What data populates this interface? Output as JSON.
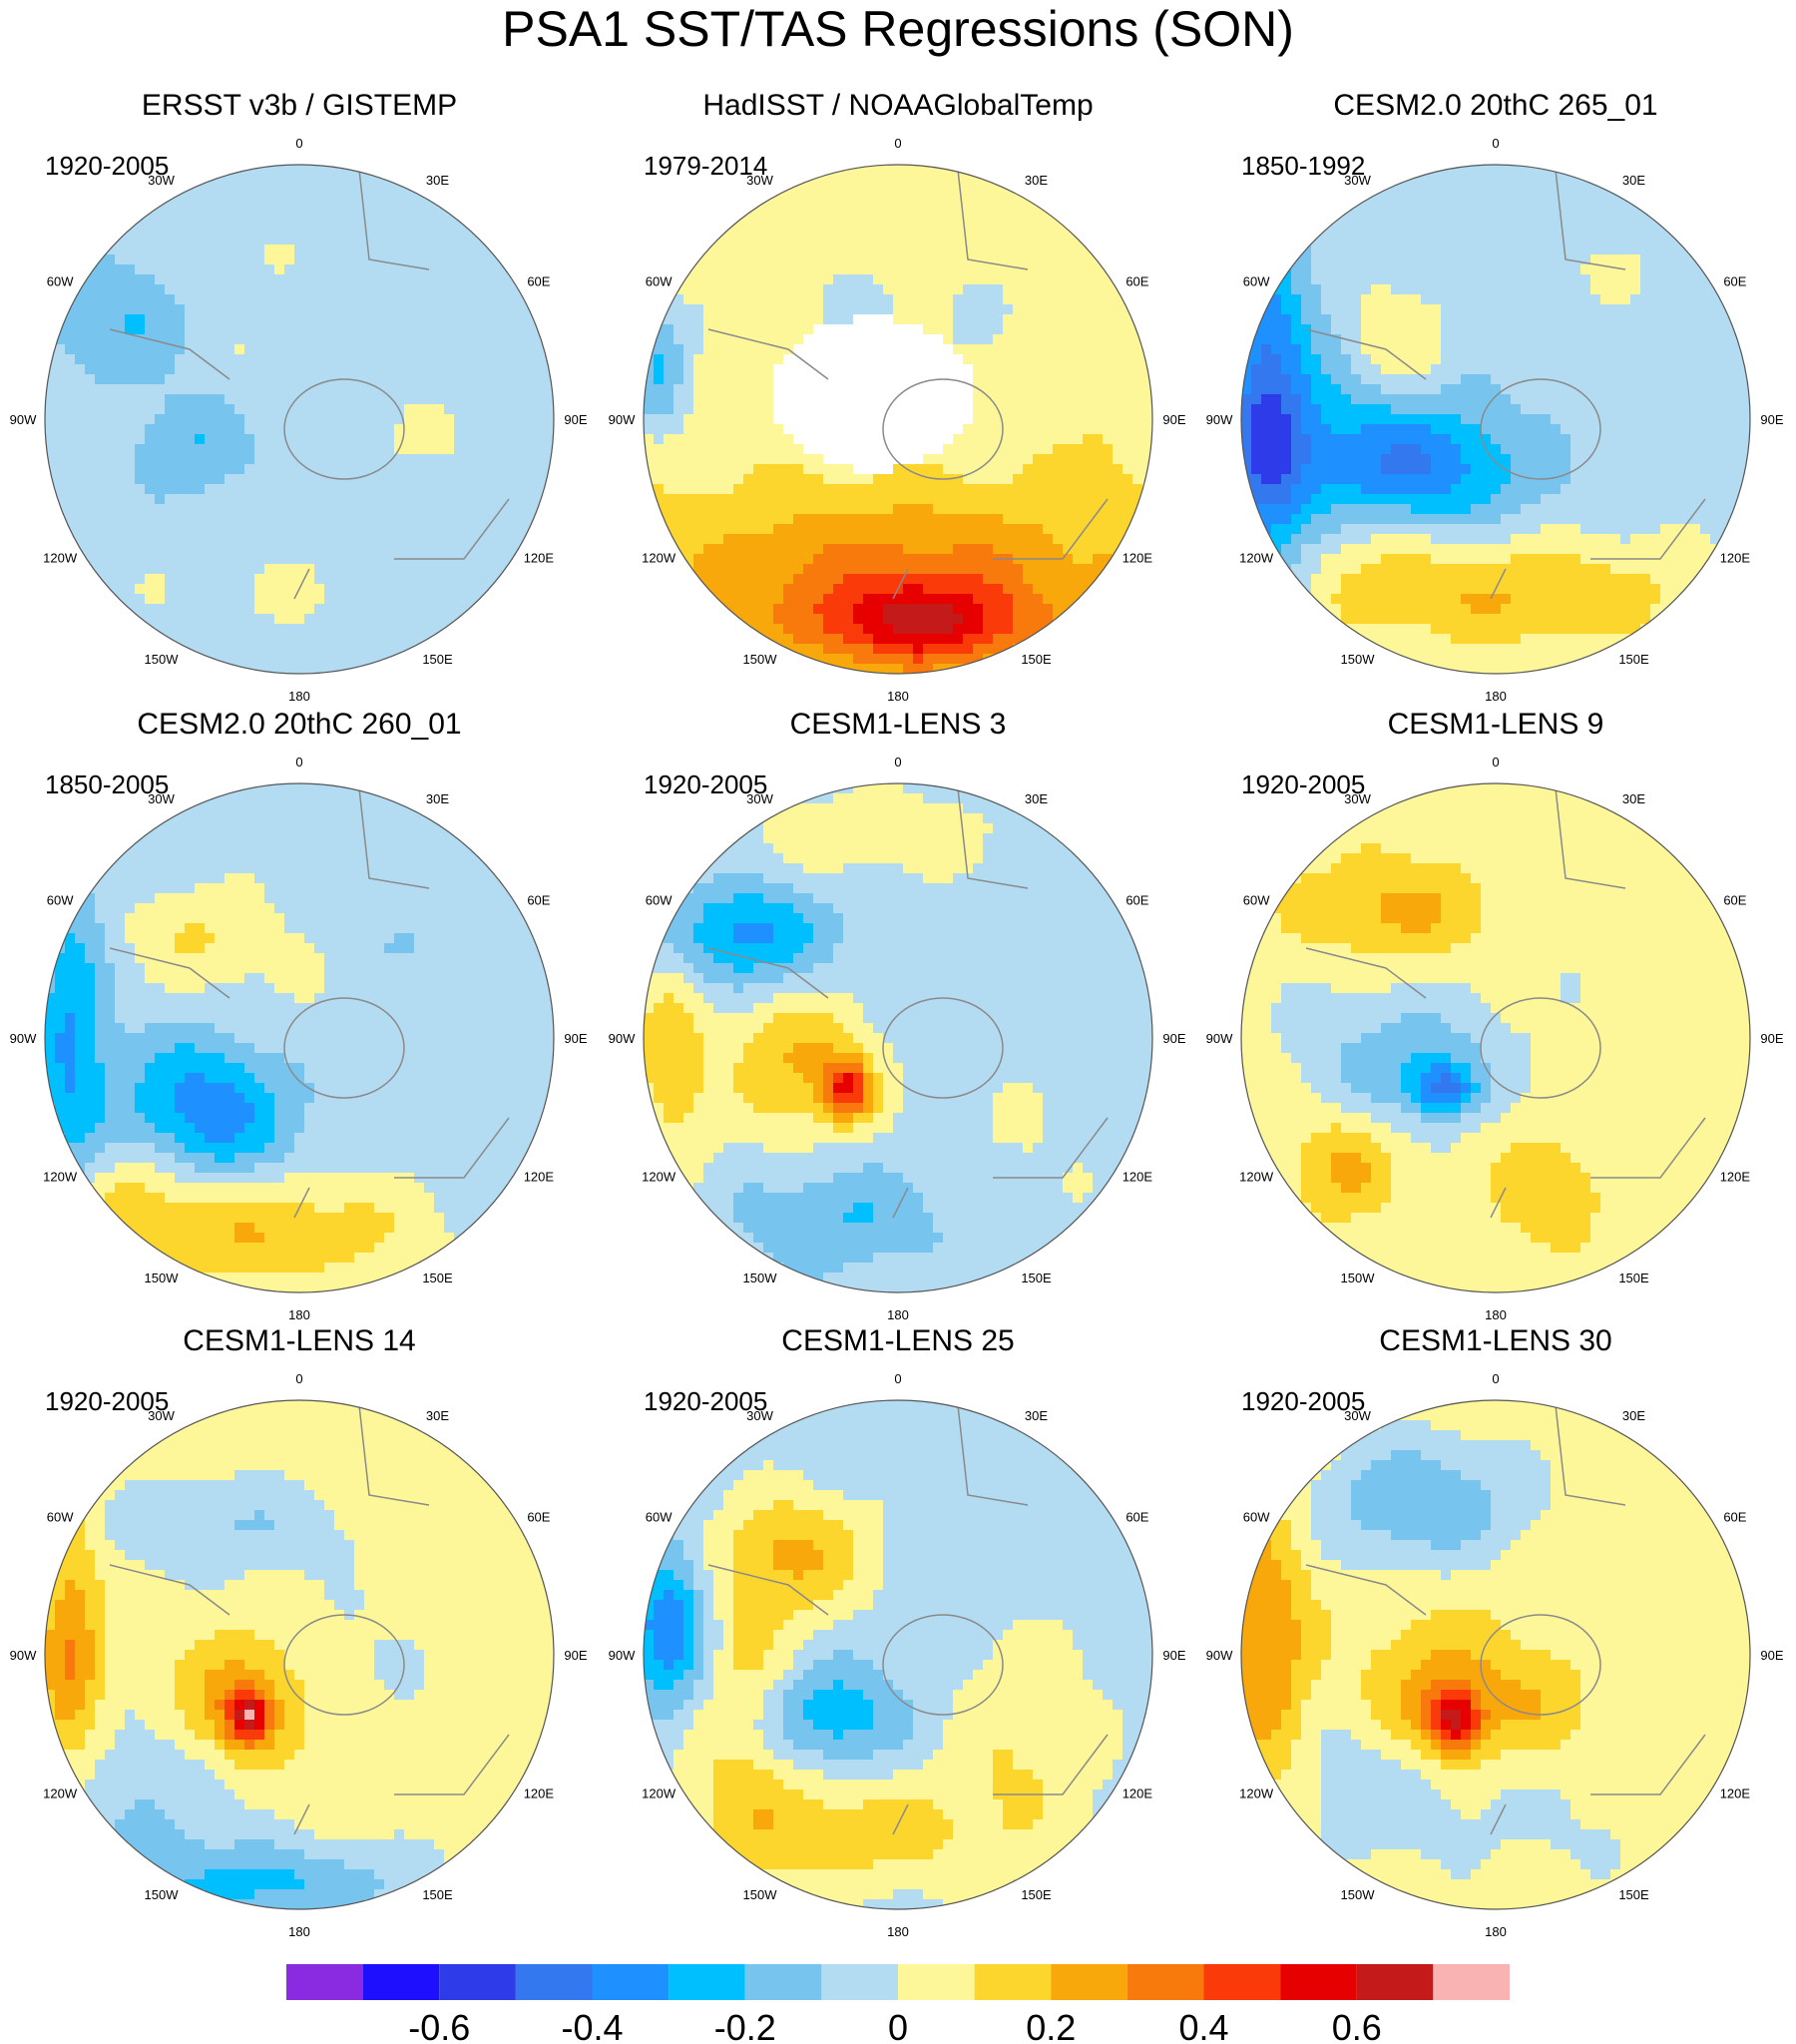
{
  "figure_title": "PSA1 SST/TAS Regressions (SON)",
  "colors": {
    "land_fill": "#ffffff",
    "coast": "#8a8a8a",
    "rim": "#555555"
  },
  "chart_data": {
    "type": "heatmap",
    "projection": "south-polar-stereographic",
    "title": "PSA1 SST/TAS Regressions (SON)",
    "longitude_labels": [
      "0",
      "30E",
      "60E",
      "90E",
      "120E",
      "150E",
      "180",
      "150W",
      "120W",
      "90W",
      "60W",
      "30W"
    ],
    "colorbar": {
      "levels": [
        -0.7,
        -0.6,
        -0.5,
        -0.4,
        -0.3,
        -0.2,
        -0.1,
        0,
        0.1,
        0.2,
        0.3,
        0.4,
        0.5,
        0.6,
        0.7
      ],
      "tick_labels": [
        "-0.6",
        "-0.4",
        "-0.2",
        "0",
        "0.2",
        "0.4",
        "0.6"
      ],
      "tick_values": [
        -0.6,
        -0.4,
        -0.2,
        0,
        0.2,
        0.4,
        0.6
      ],
      "colors": [
        "#8a2be2",
        "#1e10ff",
        "#2d3be8",
        "#3478f0",
        "#1e90ff",
        "#00bfff",
        "#77c4ef",
        "#b3dcf2",
        "#fdf79a",
        "#fcd62c",
        "#f9a80c",
        "#f87a0c",
        "#fb3a0a",
        "#e60000",
        "#c41a1a",
        "#f9b3b3"
      ]
    },
    "panels": [
      {
        "title": "ERSST v3b / GISTEMP",
        "years": "1920-2005",
        "bg": -0.05,
        "blobs": [
          [
            0.35,
            0.2,
            0.18,
            0.12,
            0.05
          ],
          [
            0.75,
            0.55,
            0.3,
            0.12,
            0.05
          ],
          [
            0.45,
            0.85,
            0.35,
            0.12,
            0.05
          ],
          [
            0.3,
            0.55,
            0.12,
            0.1,
            -0.15
          ],
          [
            0.15,
            0.3,
            0.15,
            0.12,
            -0.15
          ],
          [
            0.4,
            0.4,
            0.12,
            0.1,
            0.05
          ]
        ]
      },
      {
        "title": "HadISST / NOAAGlobalTemp",
        "years": "1979-2014",
        "bg": 0.05,
        "blobs": [
          [
            0.5,
            0.82,
            0.45,
            0.2,
            0.3
          ],
          [
            0.55,
            0.9,
            0.2,
            0.08,
            0.35
          ],
          [
            0.5,
            0.28,
            0.3,
            0.15,
            -0.05
          ],
          [
            0.5,
            0.55,
            0.3,
            0.2,
            -0.05
          ],
          [
            0.03,
            0.4,
            0.06,
            0.12,
            -0.25
          ],
          [
            0.9,
            0.6,
            0.12,
            0.15,
            0.05
          ]
        ],
        "missing": [
          0.45,
          0.45,
          0.2,
          0.15
        ]
      },
      {
        "title": "CESM2.0 20thC 265_01",
        "years": "1850-1992",
        "bg": -0.05,
        "blobs": [
          [
            0.35,
            0.6,
            0.22,
            0.12,
            -0.3
          ],
          [
            0.05,
            0.5,
            0.08,
            0.3,
            -0.4
          ],
          [
            0.55,
            0.85,
            0.38,
            0.12,
            0.25
          ],
          [
            0.3,
            0.35,
            0.1,
            0.12,
            0.2
          ],
          [
            0.7,
            0.2,
            0.2,
            0.1,
            0.05
          ],
          [
            0.25,
            0.75,
            0.15,
            0.15,
            0.15
          ],
          [
            0.2,
            0.55,
            0.2,
            0.25,
            -0.15
          ]
        ]
      },
      {
        "title": "CESM2.0 20thC 260_01",
        "years": "1850-2005",
        "bg": -0.05,
        "blobs": [
          [
            0.3,
            0.65,
            0.18,
            0.14,
            -0.35
          ],
          [
            0.05,
            0.5,
            0.07,
            0.3,
            -0.25
          ],
          [
            0.4,
            0.88,
            0.35,
            0.12,
            0.25
          ],
          [
            0.3,
            0.3,
            0.15,
            0.1,
            0.15
          ],
          [
            0.5,
            0.45,
            0.15,
            0.15,
            0.05
          ],
          [
            0.75,
            0.3,
            0.15,
            0.1,
            -0.05
          ],
          [
            0.18,
            0.75,
            0.12,
            0.15,
            0.15
          ]
        ]
      },
      {
        "title": "CESM1-LENS 3",
        "years": "1920-2005",
        "bg": -0.05,
        "blobs": [
          [
            0.3,
            0.55,
            0.15,
            0.15,
            0.25
          ],
          [
            0.4,
            0.6,
            0.05,
            0.06,
            0.45
          ],
          [
            0.2,
            0.3,
            0.15,
            0.1,
            -0.3
          ],
          [
            0.05,
            0.55,
            0.08,
            0.25,
            0.2
          ],
          [
            0.75,
            0.7,
            0.2,
            0.2,
            0.05
          ],
          [
            0.45,
            0.1,
            0.3,
            0.1,
            0.1
          ],
          [
            0.4,
            0.85,
            0.2,
            0.1,
            -0.15
          ]
        ]
      },
      {
        "title": "CESM1-LENS 9",
        "years": "1920-2005",
        "bg": 0.05,
        "blobs": [
          [
            0.35,
            0.55,
            0.18,
            0.12,
            -0.2
          ],
          [
            0.4,
            0.6,
            0.06,
            0.05,
            -0.35
          ],
          [
            0.3,
            0.25,
            0.2,
            0.1,
            0.2
          ],
          [
            0.2,
            0.5,
            0.2,
            0.3,
            -0.05
          ],
          [
            0.6,
            0.3,
            0.2,
            0.15,
            -0.05
          ],
          [
            0.2,
            0.75,
            0.1,
            0.1,
            0.2
          ],
          [
            0.6,
            0.8,
            0.1,
            0.1,
            0.15
          ]
        ]
      },
      {
        "title": "CESM1-LENS 14",
        "years": "1920-2005",
        "bg": 0.05,
        "blobs": [
          [
            0.38,
            0.6,
            0.12,
            0.12,
            0.25
          ],
          [
            0.4,
            0.62,
            0.04,
            0.05,
            0.45
          ],
          [
            0.2,
            0.8,
            0.2,
            0.2,
            -0.15
          ],
          [
            0.45,
            0.95,
            0.3,
            0.08,
            -0.25
          ],
          [
            0.05,
            0.5,
            0.06,
            0.25,
            0.25
          ],
          [
            0.35,
            0.25,
            0.25,
            0.1,
            -0.15
          ],
          [
            0.65,
            0.5,
            0.15,
            0.15,
            -0.05
          ]
        ]
      },
      {
        "title": "CESM1-LENS 25",
        "years": "1920-2005",
        "bg": -0.05,
        "blobs": [
          [
            0.35,
            0.62,
            0.15,
            0.1,
            -0.25
          ],
          [
            0.05,
            0.45,
            0.08,
            0.15,
            -0.35
          ],
          [
            0.4,
            0.85,
            0.35,
            0.12,
            0.2
          ],
          [
            0.3,
            0.3,
            0.15,
            0.12,
            0.25
          ],
          [
            0.75,
            0.65,
            0.15,
            0.2,
            0.15
          ],
          [
            0.2,
            0.6,
            0.12,
            0.25,
            0.2
          ]
        ]
      },
      {
        "title": "CESM1-LENS 30",
        "years": "1920-2005",
        "bg": 0.05,
        "blobs": [
          [
            0.4,
            0.6,
            0.15,
            0.15,
            0.25
          ],
          [
            0.42,
            0.63,
            0.05,
            0.06,
            0.45
          ],
          [
            0.35,
            0.2,
            0.2,
            0.12,
            -0.25
          ],
          [
            0.05,
            0.5,
            0.08,
            0.3,
            0.25
          ],
          [
            0.3,
            0.75,
            0.25,
            0.15,
            -0.15
          ],
          [
            0.6,
            0.6,
            0.1,
            0.1,
            0.1
          ],
          [
            0.7,
            0.85,
            0.2,
            0.1,
            -0.05
          ]
        ]
      }
    ]
  }
}
